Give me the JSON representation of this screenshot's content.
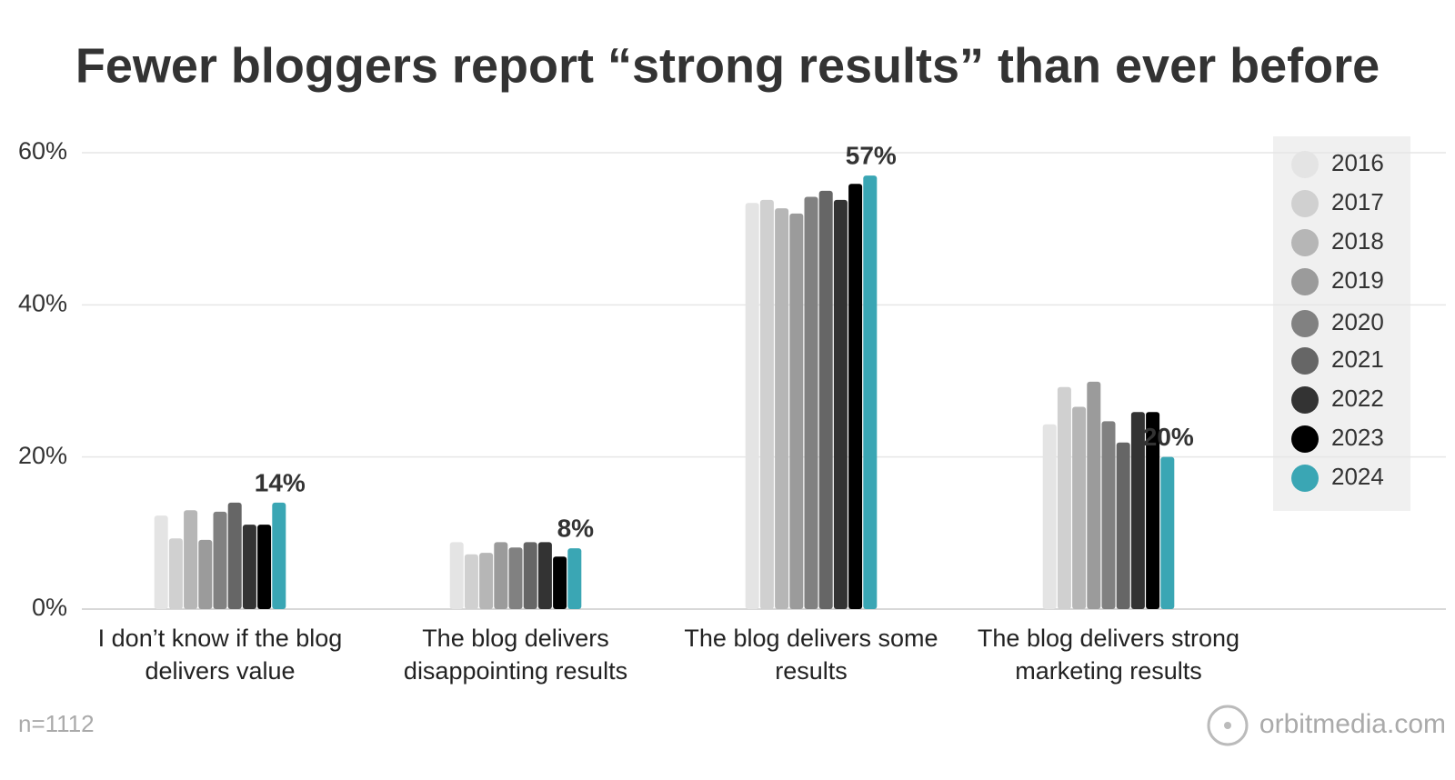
{
  "chart_data": {
    "type": "bar",
    "title": "Fewer bloggers report “strong results” than ever before",
    "categories": [
      "I don’t know if the blog delivers value",
      "The blog delivers disappointing results",
      "The blog delivers some results",
      "The blog delivers strong marketing results"
    ],
    "series": [
      {
        "name": "2016",
        "color": "#e4e4e4",
        "values": [
          12.3,
          8.8,
          53.4,
          24.3
        ]
      },
      {
        "name": "2017",
        "color": "#d0d0d0",
        "values": [
          9.3,
          7.2,
          53.8,
          29.2
        ]
      },
      {
        "name": "2018",
        "color": "#b6b6b6",
        "values": [
          13,
          7.4,
          52.7,
          26.6
        ]
      },
      {
        "name": "2019",
        "color": "#9b9b9b",
        "values": [
          9.1,
          8.8,
          52,
          29.9
        ]
      },
      {
        "name": "2020",
        "color": "#818181",
        "values": [
          12.8,
          8.1,
          54.2,
          24.7
        ]
      },
      {
        "name": "2021",
        "color": "#666666",
        "values": [
          14,
          8.8,
          55,
          21.9
        ]
      },
      {
        "name": "2022",
        "color": "#333333",
        "values": [
          11.1,
          8.8,
          53.8,
          25.9
        ]
      },
      {
        "name": "2023",
        "color": "#000000",
        "values": [
          11.1,
          6.9,
          55.9,
          25.9
        ]
      },
      {
        "name": "2024",
        "color": "#3aa6b4",
        "values": [
          14,
          8,
          57,
          20
        ],
        "value_labels": [
          "14%",
          "8%",
          "57%",
          "20%"
        ]
      }
    ],
    "ylim": [
      0,
      60
    ],
    "yticks": [
      {
        "value": 0,
        "label": "0%"
      },
      {
        "value": 20,
        "label": "20%"
      },
      {
        "value": 40,
        "label": "40%"
      },
      {
        "value": 60,
        "label": "60%"
      }
    ],
    "grid": true,
    "legend": "right",
    "footnote": "n=1112",
    "source": "orbitmedia.com"
  }
}
